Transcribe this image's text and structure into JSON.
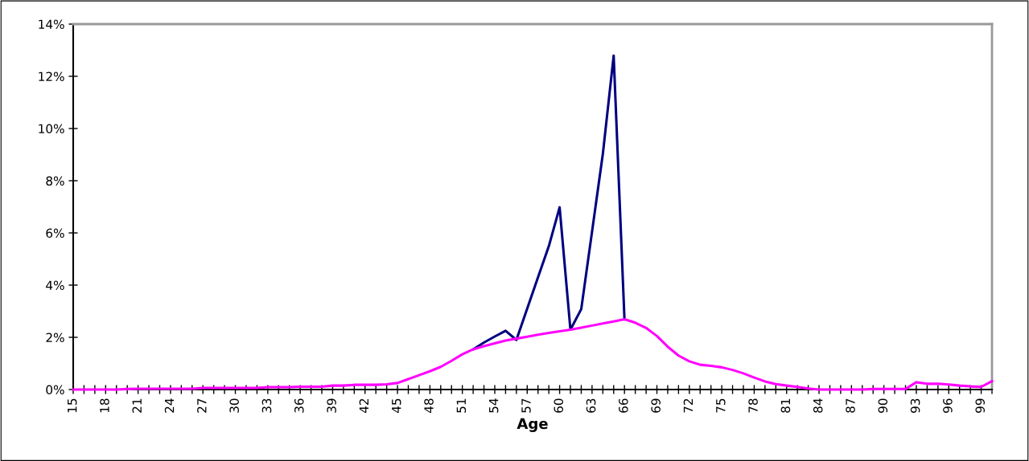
{
  "chart_data": {
    "type": "line",
    "xlabel": "Age",
    "categories": [
      "15",
      null,
      null,
      "18",
      null,
      null,
      "21",
      null,
      null,
      "24",
      null,
      null,
      "27",
      null,
      null,
      "30",
      null,
      null,
      "33",
      null,
      null,
      "36",
      null,
      null,
      "39",
      null,
      null,
      "42",
      null,
      null,
      "45",
      null,
      null,
      "48",
      null,
      null,
      "51",
      null,
      null,
      "54",
      null,
      null,
      "57",
      null,
      null,
      "60",
      null,
      null,
      "63",
      null,
      null,
      "66",
      null,
      null,
      "69",
      null,
      null,
      "72",
      null,
      null,
      "75",
      null,
      null,
      "78",
      null,
      null,
      "81",
      null,
      null,
      "84",
      null,
      null,
      "87",
      null,
      null,
      "90",
      null,
      null,
      "93",
      null,
      null,
      "96",
      null,
      null,
      "99",
      null
    ],
    "series": [
      {
        "color": "#000080",
        "values": [
          null,
          null,
          null,
          null,
          null,
          null,
          null,
          null,
          null,
          null,
          null,
          null,
          null,
          null,
          null,
          null,
          null,
          null,
          null,
          null,
          null,
          null,
          null,
          null,
          null,
          null,
          null,
          null,
          null,
          null,
          null,
          null,
          null,
          null,
          null,
          null,
          null,
          1.54,
          1.8,
          2.03,
          2.25,
          1.9,
          3.1,
          4.3,
          5.49,
          6.98,
          2.29,
          3.08,
          6.05,
          9.03,
          12.79,
          2.69,
          null,
          null,
          null,
          null,
          null,
          null,
          null,
          null,
          null,
          null,
          null,
          null,
          null,
          null,
          null,
          null,
          null,
          null,
          null,
          null,
          null,
          null,
          null,
          null,
          null,
          null,
          null,
          null,
          null,
          null,
          null,
          null,
          null,
          null
        ]
      },
      {
        "color": "#ff00ff",
        "values": [
          0,
          0,
          0,
          0,
          0,
          0.02,
          0.03,
          0.03,
          0.03,
          0.03,
          0.03,
          0.03,
          0.06,
          0.06,
          0.06,
          0.06,
          0.06,
          0.06,
          0.09,
          0.09,
          0.09,
          0.11,
          0.11,
          0.11,
          0.15,
          0.15,
          0.18,
          0.18,
          0.18,
          0.2,
          0.25,
          0.4,
          0.55,
          0.7,
          0.87,
          1.1,
          1.35,
          1.54,
          1.66,
          1.77,
          1.88,
          1.95,
          2.02,
          2.1,
          2.17,
          2.23,
          2.29,
          2.37,
          2.45,
          2.53,
          2.61,
          2.69,
          2.56,
          2.36,
          2.05,
          1.64,
          1.3,
          1.08,
          0.95,
          0.91,
          0.85,
          0.75,
          0.62,
          0.46,
          0.31,
          0.21,
          0.15,
          0.1,
          0.04,
          0,
          0,
          0,
          0,
          0,
          0.02,
          0.02,
          0.02,
          0.02,
          0.28,
          0.22,
          0.22,
          0.19,
          0.15,
          0.12,
          0.1,
          0.32
        ]
      }
    ],
    "ylim": [
      0,
      14
    ],
    "yticks": [
      {
        "value": 0,
        "label": "0%"
      },
      {
        "value": 2,
        "label": "2%"
      },
      {
        "value": 4,
        "label": "4%"
      },
      {
        "value": 6,
        "label": "6%"
      },
      {
        "value": 8,
        "label": "8%"
      },
      {
        "value": 10,
        "label": "10%"
      },
      {
        "value": 12,
        "label": "12%"
      },
      {
        "value": 14,
        "label": "14%"
      }
    ],
    "grid": false,
    "marker": "none",
    "line_style": "solid"
  }
}
